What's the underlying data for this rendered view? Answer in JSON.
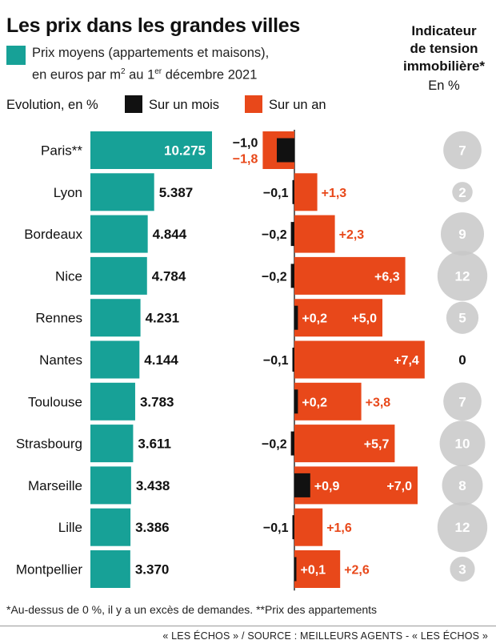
{
  "header": {
    "title": "Les prix dans les grandes villes",
    "legend_line1": "Prix moyens (appartements et maisons),",
    "legend_line2_a": "en euros par m",
    "legend_line2_sup1": "2",
    "legend_line2_b": " au 1",
    "legend_line2_sup2": "er",
    "legend_line2_c": " décembre 2021",
    "evolution_label": "Evolution, en %",
    "month_label": "Sur un mois",
    "year_label": "Sur un an",
    "tension_title_1": "Indicateur",
    "tension_title_2": "de tension",
    "tension_title_3": "immobilière*",
    "tension_unit": "En %"
  },
  "colors": {
    "price": "#17a197",
    "month": "#111111",
    "year": "#e8481a",
    "tension_bubble": "#c8c8c8"
  },
  "chart_data": {
    "type": "bar",
    "categories": [
      "Paris**",
      "Lyon",
      "Bordeaux",
      "Nice",
      "Rennes",
      "Nantes",
      "Toulouse",
      "Strasbourg",
      "Marseille",
      "Lille",
      "Montpellier"
    ],
    "series": [
      {
        "name": "Prix moyens (appartements et maisons), en euros par m2 au 1er décembre 2021",
        "values": [
          10275,
          5387,
          4844,
          4784,
          4231,
          4144,
          3783,
          3611,
          3438,
          3386,
          3370
        ],
        "labels": [
          "10.275",
          "5.387",
          "4.844",
          "4.784",
          "4.231",
          "4.144",
          "3.783",
          "3.611",
          "3.438",
          "3.386",
          "3.370"
        ]
      },
      {
        "name": "Sur un mois",
        "values": [
          -1.0,
          -0.1,
          -0.2,
          -0.2,
          0.2,
          -0.1,
          0.2,
          -0.2,
          0.9,
          -0.1,
          0.1
        ],
        "labels": [
          "−1,0",
          "−0,1",
          "−0,2",
          "−0,2",
          "+0,2",
          "−0,1",
          "+0,2",
          "−0,2",
          "+0,9",
          "−0,1",
          "+0,1"
        ]
      },
      {
        "name": "Sur un an",
        "values": [
          -1.8,
          1.3,
          2.3,
          6.3,
          5.0,
          7.4,
          3.8,
          5.7,
          7.0,
          1.6,
          2.6
        ],
        "labels": [
          "−1,8",
          "+1,3",
          "+2,3",
          "+6,3",
          "+5,0",
          "+7,4",
          "+3,8",
          "+5,7",
          "+7,0",
          "+1,6",
          "+2,6"
        ]
      },
      {
        "name": "Indicateur de tension immobilière*",
        "values": [
          7,
          2,
          9,
          12,
          5,
          0,
          7,
          10,
          8,
          12,
          3
        ],
        "labels": [
          "7",
          "2",
          "9",
          "12",
          "5",
          "0",
          "7",
          "10",
          "8",
          "12",
          "3"
        ]
      }
    ]
  },
  "footer": {
    "footnote": "*Au-dessus de 0 %, il y a un excès de demandes. **Prix des appartements",
    "source": "« LES ÉCHOS » / SOURCE : MEILLEURS AGENTS - « LES ÉCHOS »"
  }
}
